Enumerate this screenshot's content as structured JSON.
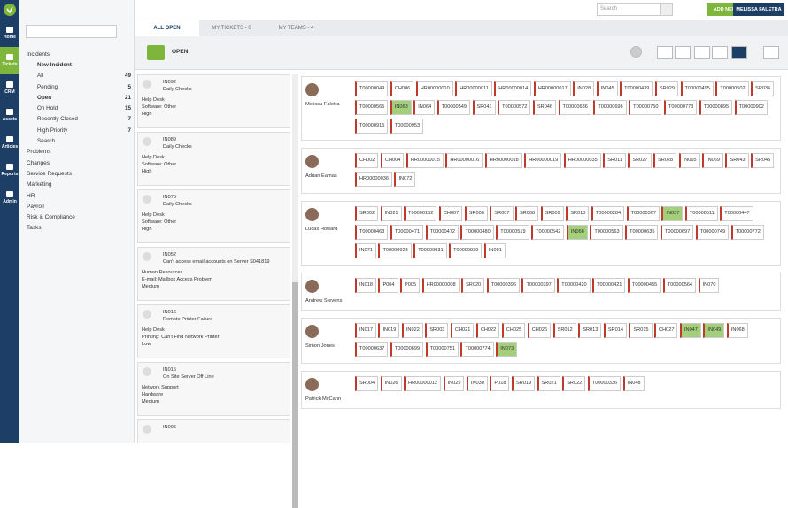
{
  "topbar": {
    "search": "Search",
    "add_new": "ADD NEW...",
    "user": "MELISSA FALETRA"
  },
  "nav": [
    "Home",
    "Tickets",
    "CRM",
    "Assets",
    "Articles",
    "Reports",
    "Admin"
  ],
  "sidebar": {
    "groups": [
      {
        "label": "Incidents",
        "items": [
          {
            "label": "New Incident"
          },
          {
            "label": "All",
            "count": 49
          },
          {
            "label": "Pending",
            "count": 5
          },
          {
            "label": "Open",
            "count": 21
          },
          {
            "label": "On Hold",
            "count": 15
          },
          {
            "label": "Recently Closed",
            "count": 7
          },
          {
            "label": "High Priority",
            "count": 7
          },
          {
            "label": "Search"
          }
        ]
      },
      {
        "label": "Problems"
      },
      {
        "label": "Changes"
      },
      {
        "label": "Service Requests"
      },
      {
        "label": "Marketing"
      },
      {
        "label": "HR"
      },
      {
        "label": "Payroll"
      },
      {
        "label": "Risk & Compliance"
      },
      {
        "label": "Tasks"
      }
    ]
  },
  "tabs": [
    "ALL OPEN",
    "MY TICKETS - 0",
    "MY TEAMS - 4"
  ],
  "view_title": "OPEN",
  "cards": [
    {
      "id": "IN092",
      "title": "Daily Checks",
      "lines": [
        "Help Desk",
        "Software: Other",
        "High"
      ]
    },
    {
      "id": "IN089",
      "title": "Daily Checks",
      "lines": [
        "Help Desk",
        "Software: Other",
        "High"
      ]
    },
    {
      "id": "IN075",
      "title": "Daily Checks",
      "lines": [
        "Help Desk",
        "Software: Other",
        "High"
      ]
    },
    {
      "id": "IN052",
      "title": "Can't access email accounts on Server S041819",
      "lines": [
        "Human Resources",
        "E-mail: Mailbox Access Problem",
        "Medium"
      ]
    },
    {
      "id": "IN016",
      "title": "Remote Printer Failure",
      "lines": [
        "Help Desk",
        "Printing: Can't Find Network Printer",
        "Low"
      ]
    },
    {
      "id": "IN015",
      "title": "On Site Server Off Line",
      "lines": [
        "Network Support",
        "Hardware",
        "Medium"
      ]
    },
    {
      "id": "IN006"
    }
  ],
  "people": [
    {
      "name": "Melissa Faletra",
      "highlighted": [
        14
      ],
      "tickets": [
        "T00000049",
        "CH006",
        "HR00000010",
        "HR00000011",
        "HR00000014",
        "HR00000017",
        "IN028",
        "IN045",
        "T00000439",
        "SR029",
        "T00000495",
        "T00000502",
        "SR036",
        "T00000565",
        "IN063",
        "IN064",
        "T00000549",
        "SR041",
        "T00000572",
        "SR046",
        "T00000636",
        "T00000698",
        "T00000750",
        "T00000773",
        "T00000895",
        "T00000902",
        "T00000915",
        "T00000953"
      ]
    },
    {
      "name": "Adrian Eamas",
      "highlighted": [],
      "tickets": [
        "CH002",
        "CH004",
        "HR00000015",
        "HR00000016",
        "HR00000018",
        "HR00000019",
        "HR00000035",
        "SR011",
        "SR027",
        "SR028",
        "IN065",
        "IN069",
        "SR043",
        "SR045",
        "HR00000036",
        "IN072"
      ]
    },
    {
      "name": "Lucas Howard",
      "highlighted": [
        11,
        20
      ],
      "tickets": [
        "SR002",
        "IN021",
        "T00000152",
        "CH007",
        "SR006",
        "SR007",
        "SR008",
        "SR009",
        "SR010",
        "T00000284",
        "T00000367",
        "IN037",
        "T00000511",
        "T00000447",
        "T00000463",
        "T00000471",
        "T00000472",
        "T00000480",
        "T00000519",
        "T00000542",
        "IN066",
        "T00000563",
        "T00000635",
        "T00000697",
        "T00000749",
        "T00000772",
        "IN071",
        "T00000923",
        "T00000931",
        "T00000939",
        "IN091"
      ]
    },
    {
      "name": "Andrew Stevens",
      "highlighted": [],
      "tickets": [
        "IN018",
        "P004",
        "P005",
        "HR00000008",
        "SR020",
        "T00000396",
        "T00000397",
        "T00000420",
        "T00000421",
        "T00000455",
        "T00000564",
        "IN070"
      ]
    },
    {
      "name": "Simon Jones",
      "highlighted": [
        13,
        14,
        20
      ],
      "tickets": [
        "IN017",
        "IN019",
        "IN022",
        "SR003",
        "CH021",
        "CH022",
        "CH025",
        "CH026",
        "SR012",
        "SR013",
        "SR014",
        "SR015",
        "CH027",
        "IN047",
        "IN049",
        "IN068",
        "T00000637",
        "T00000699",
        "T00000751",
        "T00000774",
        "IN073"
      ]
    },
    {
      "name": "Patrick McCann",
      "highlighted": [],
      "tickets": [
        "SR004",
        "IN026",
        "HR00000012",
        "IN029",
        "IN030",
        "P018",
        "SR019",
        "SR021",
        "SR022",
        "T00000336",
        "IN048"
      ]
    }
  ]
}
